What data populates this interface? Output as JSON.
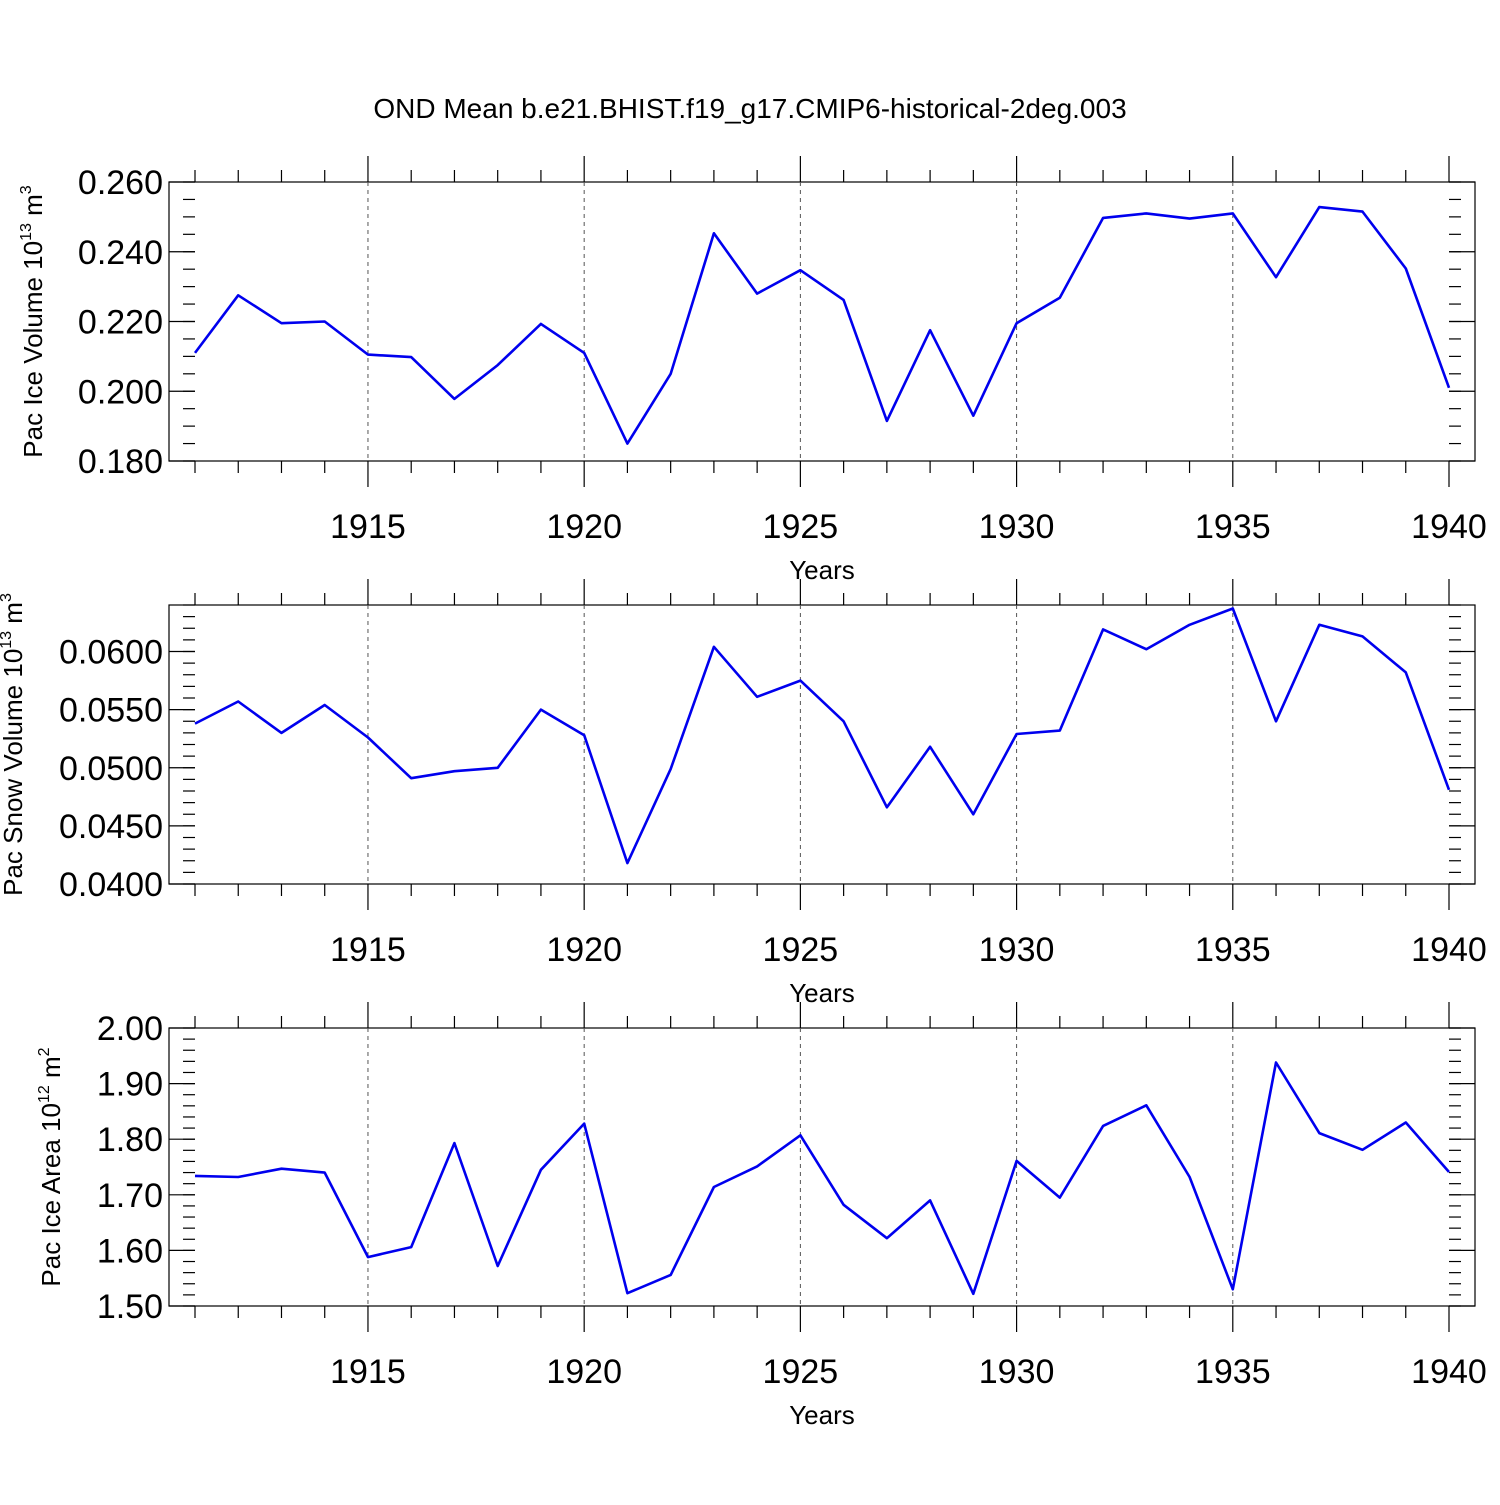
{
  "title": "OND Mean b.e21.BHIST.f19_g17.CMIP6-historical-2deg.003",
  "colors": {
    "line": "#0000ee",
    "frame": "#000000",
    "grid": "#555555"
  },
  "chart_data": [
    {
      "type": "line",
      "xlabel": "Years",
      "ylabel_main": "Pac Ice Volume 10",
      "ylabel_exp": "13",
      "ylabel_unit": " m",
      "ylabel_unit_exp": "3",
      "xlim": [
        1911,
        1940
      ],
      "ylim": [
        0.18,
        0.26
      ],
      "x_ticks": [
        1915,
        1920,
        1925,
        1930,
        1935,
        1940
      ],
      "y_ticks": [
        0.18,
        0.2,
        0.22,
        0.24,
        0.26
      ],
      "y_tick_labels": [
        "0.180",
        "0.200",
        "0.220",
        "0.240",
        "0.260"
      ],
      "y_minor_step": 0.005,
      "grid": "vertical dashed at major x ticks",
      "x": [
        1911,
        1912,
        1913,
        1914,
        1915,
        1916,
        1917,
        1918,
        1919,
        1920,
        1921,
        1922,
        1923,
        1924,
        1925,
        1926,
        1927,
        1928,
        1929,
        1930,
        1931,
        1932,
        1933,
        1934,
        1935,
        1936,
        1937,
        1938,
        1939,
        1940
      ],
      "y": [
        0.211,
        0.2275,
        0.2195,
        0.22,
        0.2105,
        0.2098,
        0.1978,
        0.2075,
        0.2193,
        0.211,
        0.185,
        0.205,
        0.2453,
        0.228,
        0.2347,
        0.2262,
        0.1915,
        0.2175,
        0.193,
        0.2195,
        0.2268,
        0.2497,
        0.251,
        0.2495,
        0.251,
        0.2327,
        0.2528,
        0.2515,
        0.2352,
        0.201
      ]
    },
    {
      "type": "line",
      "xlabel": "Years",
      "ylabel_main": "Pac Snow Volume 10",
      "ylabel_exp": "13",
      "ylabel_unit": " m",
      "ylabel_unit_exp": "3",
      "xlim": [
        1911,
        1940
      ],
      "ylim": [
        0.04,
        0.064
      ],
      "x_ticks": [
        1915,
        1920,
        1925,
        1930,
        1935,
        1940
      ],
      "y_ticks": [
        0.04,
        0.045,
        0.05,
        0.055,
        0.06
      ],
      "y_tick_labels": [
        "0.0400",
        "0.0450",
        "0.0500",
        "0.0550",
        "0.0600"
      ],
      "y_minor_step": 0.001,
      "grid": "vertical dashed at major x ticks",
      "x": [
        1911,
        1912,
        1913,
        1914,
        1915,
        1916,
        1917,
        1918,
        1919,
        1920,
        1921,
        1922,
        1923,
        1924,
        1925,
        1926,
        1927,
        1928,
        1929,
        1930,
        1931,
        1932,
        1933,
        1934,
        1935,
        1936,
        1937,
        1938,
        1939,
        1940
      ],
      "y": [
        0.0538,
        0.0557,
        0.053,
        0.0554,
        0.0526,
        0.0491,
        0.0497,
        0.05,
        0.055,
        0.0528,
        0.0418,
        0.0499,
        0.0604,
        0.0561,
        0.0575,
        0.054,
        0.0466,
        0.0518,
        0.046,
        0.0529,
        0.0532,
        0.0619,
        0.0602,
        0.0623,
        0.0637,
        0.054,
        0.0623,
        0.0613,
        0.0582,
        0.0481
      ]
    },
    {
      "type": "line",
      "xlabel": "Years",
      "ylabel_main": "Pac Ice Area 10",
      "ylabel_exp": "12",
      "ylabel_unit": " m",
      "ylabel_unit_exp": "2",
      "xlim": [
        1911,
        1940
      ],
      "ylim": [
        1.5,
        2.0
      ],
      "x_ticks": [
        1915,
        1920,
        1925,
        1930,
        1935,
        1940
      ],
      "y_ticks": [
        1.5,
        1.6,
        1.7,
        1.8,
        1.9,
        2.0
      ],
      "y_tick_labels": [
        "1.50",
        "1.60",
        "1.70",
        "1.80",
        "1.90",
        "2.00"
      ],
      "y_minor_step": 0.02,
      "grid": "vertical dashed at major x ticks",
      "x": [
        1911,
        1912,
        1913,
        1914,
        1915,
        1916,
        1917,
        1918,
        1919,
        1920,
        1921,
        1922,
        1923,
        1924,
        1925,
        1926,
        1927,
        1928,
        1929,
        1930,
        1931,
        1932,
        1933,
        1934,
        1935,
        1936,
        1937,
        1938,
        1939,
        1940
      ],
      "y": [
        1.734,
        1.732,
        1.747,
        1.74,
        1.588,
        1.606,
        1.793,
        1.572,
        1.745,
        1.828,
        1.523,
        1.556,
        1.714,
        1.751,
        1.807,
        1.682,
        1.622,
        1.69,
        1.522,
        1.761,
        1.695,
        1.824,
        1.861,
        1.732,
        1.53,
        1.938,
        1.811,
        1.781,
        1.83,
        1.741
      ]
    }
  ]
}
